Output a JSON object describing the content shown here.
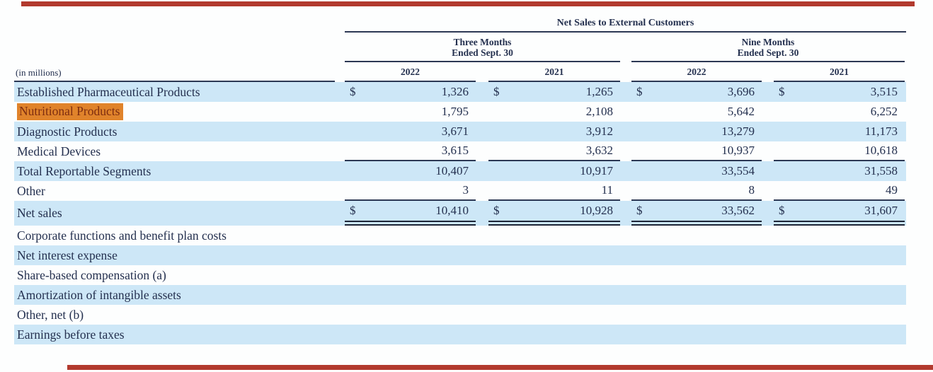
{
  "table": {
    "main_header": "Net Sales to External Customers",
    "unit_label": "(in millions)",
    "group_headers": [
      {
        "line1": "Three Months",
        "line2": "Ended Sept. 30"
      },
      {
        "line1": "Nine Months",
        "line2": "Ended Sept. 30"
      }
    ],
    "year_headers": [
      "2022",
      "2021",
      "2022",
      "2021"
    ],
    "rows": [
      {
        "label": "Established Pharmaceutical Products",
        "dollar": true,
        "values": [
          "1,326",
          "1,265",
          "3,696",
          "3,515"
        ],
        "shaded": true,
        "highlight": false,
        "rule": "none"
      },
      {
        "label": "Nutritional Products",
        "dollar": false,
        "values": [
          "1,795",
          "2,108",
          "5,642",
          "6,252"
        ],
        "shaded": false,
        "highlight": true,
        "rule": "none"
      },
      {
        "label": "Diagnostic Products",
        "dollar": false,
        "values": [
          "3,671",
          "3,912",
          "13,279",
          "11,173"
        ],
        "shaded": true,
        "highlight": false,
        "rule": "none"
      },
      {
        "label": "Medical Devices",
        "dollar": false,
        "values": [
          "3,615",
          "3,632",
          "10,937",
          "10,618"
        ],
        "shaded": false,
        "highlight": false,
        "rule": "single"
      },
      {
        "label": "Total Reportable Segments",
        "dollar": false,
        "values": [
          "10,407",
          "10,917",
          "33,554",
          "31,558"
        ],
        "shaded": true,
        "highlight": false,
        "rule": "none"
      },
      {
        "label": "Other",
        "dollar": false,
        "values": [
          "3",
          "11",
          "8",
          "49"
        ],
        "shaded": false,
        "highlight": false,
        "rule": "single"
      },
      {
        "label": "Net sales",
        "dollar": true,
        "values": [
          "10,410",
          "10,928",
          "33,562",
          "31,607"
        ],
        "shaded": true,
        "highlight": false,
        "rule": "double"
      },
      {
        "label": "Corporate functions and benefit plan costs",
        "dollar": false,
        "values": [
          "",
          "",
          "",
          ""
        ],
        "shaded": false,
        "highlight": false,
        "rule": "none"
      },
      {
        "label": "Net interest expense",
        "dollar": false,
        "values": [
          "",
          "",
          "",
          ""
        ],
        "shaded": true,
        "highlight": false,
        "rule": "none"
      },
      {
        "label": "Share-based compensation (a)",
        "dollar": false,
        "values": [
          "",
          "",
          "",
          ""
        ],
        "shaded": false,
        "highlight": false,
        "rule": "none"
      },
      {
        "label": "Amortization of intangible assets",
        "dollar": false,
        "values": [
          "",
          "",
          "",
          ""
        ],
        "shaded": true,
        "highlight": false,
        "rule": "none"
      },
      {
        "label": "Other, net (b)",
        "dollar": false,
        "values": [
          "",
          "",
          "",
          ""
        ],
        "shaded": false,
        "highlight": false,
        "rule": "none"
      },
      {
        "label": "Earnings before taxes",
        "dollar": false,
        "values": [
          "",
          "",
          "",
          ""
        ],
        "shaded": true,
        "highlight": false,
        "rule": "none"
      }
    ],
    "currency_symbol": "$"
  },
  "colors": {
    "row_shade": "#cde7f7",
    "text": "#24304f",
    "rule": "#2c3854",
    "double_rule": "#1d2537",
    "highlight_bg": "#e0832b",
    "highlight_text": "#7e2d10",
    "edge_bar": "#b23a2e"
  }
}
